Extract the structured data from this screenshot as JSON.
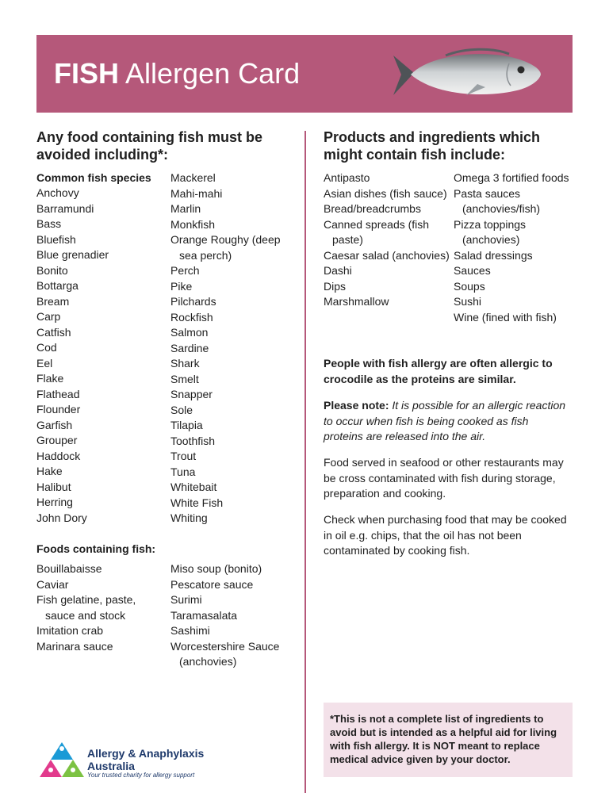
{
  "header": {
    "title_bold": "FISH",
    "title_rest": "Allergen Card",
    "image": "fish-photo"
  },
  "left": {
    "heading": "Any food containing fish must be avoided including*:",
    "species_heading": "Common fish species",
    "species_col1": [
      "Anchovy",
      "Barramundi",
      "Bass",
      "Bluefish",
      "Blue grenadier",
      "Bonito",
      "Bottarga",
      "Bream",
      "Carp",
      "Catfish",
      "Cod",
      "Eel",
      "Flake",
      "Flathead",
      "Flounder",
      "Garfish",
      "Grouper",
      "Haddock",
      "Hake",
      "Halibut",
      "Herring",
      "John Dory"
    ],
    "species_col2": [
      "Mackerel",
      "Mahi-mahi",
      "Marlin",
      "Monkfish",
      "Orange Roughy (deep sea perch)",
      "Perch",
      "Pike",
      "Pilchards",
      "Rockfish",
      "Salmon",
      "Sardine",
      "Shark",
      "Smelt",
      "Snapper",
      "Sole",
      "Tilapia",
      "Toothfish",
      "Trout",
      "Tuna",
      "Whitebait",
      "White Fish",
      "Whiting"
    ],
    "foods_heading": "Foods containing fish:",
    "foods_col1": [
      "Bouillabaisse",
      "Caviar",
      "Fish gelatine, paste, sauce and stock",
      "Imitation crab",
      "Marinara sauce"
    ],
    "foods_col2": [
      "Miso soup (bonito)",
      "Pescatore sauce",
      "Surimi",
      "Taramasalata",
      "Sashimi",
      "Worcestershire Sauce (anchovies)"
    ]
  },
  "right": {
    "heading": "Products and ingredients which might contain fish include:",
    "products_col1": [
      "Antipasto",
      "Asian dishes (fish sauce)",
      "Bread/breadcrumbs",
      "Canned spreads (fish paste)",
      "Caesar salad (anchovies)",
      "Dashi",
      "Dips",
      "Marshmallow"
    ],
    "products_col2": [
      "Omega 3 fortified foods",
      "Pasta sauces (anchovies/fish)",
      "Pizza toppings (anchovies)",
      "Salad dressings",
      "Sauces",
      "Soups",
      "Sushi",
      "Wine (fined with fish)"
    ],
    "crocodile": "People with fish allergy are often allergic to crocodile as the proteins are similar.",
    "note_label": "Please note:",
    "note_text": "It is possible for an allergic reaction to occur when fish is being cooked as fish proteins are released into the air.",
    "cross_contam": "Food served in seafood or other restaurants may be cross contaminated with fish during storage, preparation and cooking.",
    "check": "Check when purchasing food that may be cooked in oil e.g. chips, that the oil has not been contaminated by cooking fish.",
    "disclaimer": "*This is not a complete list of ingredients to avoid but is intended as a helpful aid for living with fish allergy. It is NOT meant to replace medical advice given by your doctor."
  },
  "logo": {
    "name_line1": "Allergy & Anaphylaxis",
    "name_line2": "Australia",
    "tagline": "Your trusted charity for allergy support"
  },
  "colors": {
    "brand": "#b5587a",
    "note_bg": "#f3e1e9",
    "logo_text": "#1f3a6b"
  }
}
